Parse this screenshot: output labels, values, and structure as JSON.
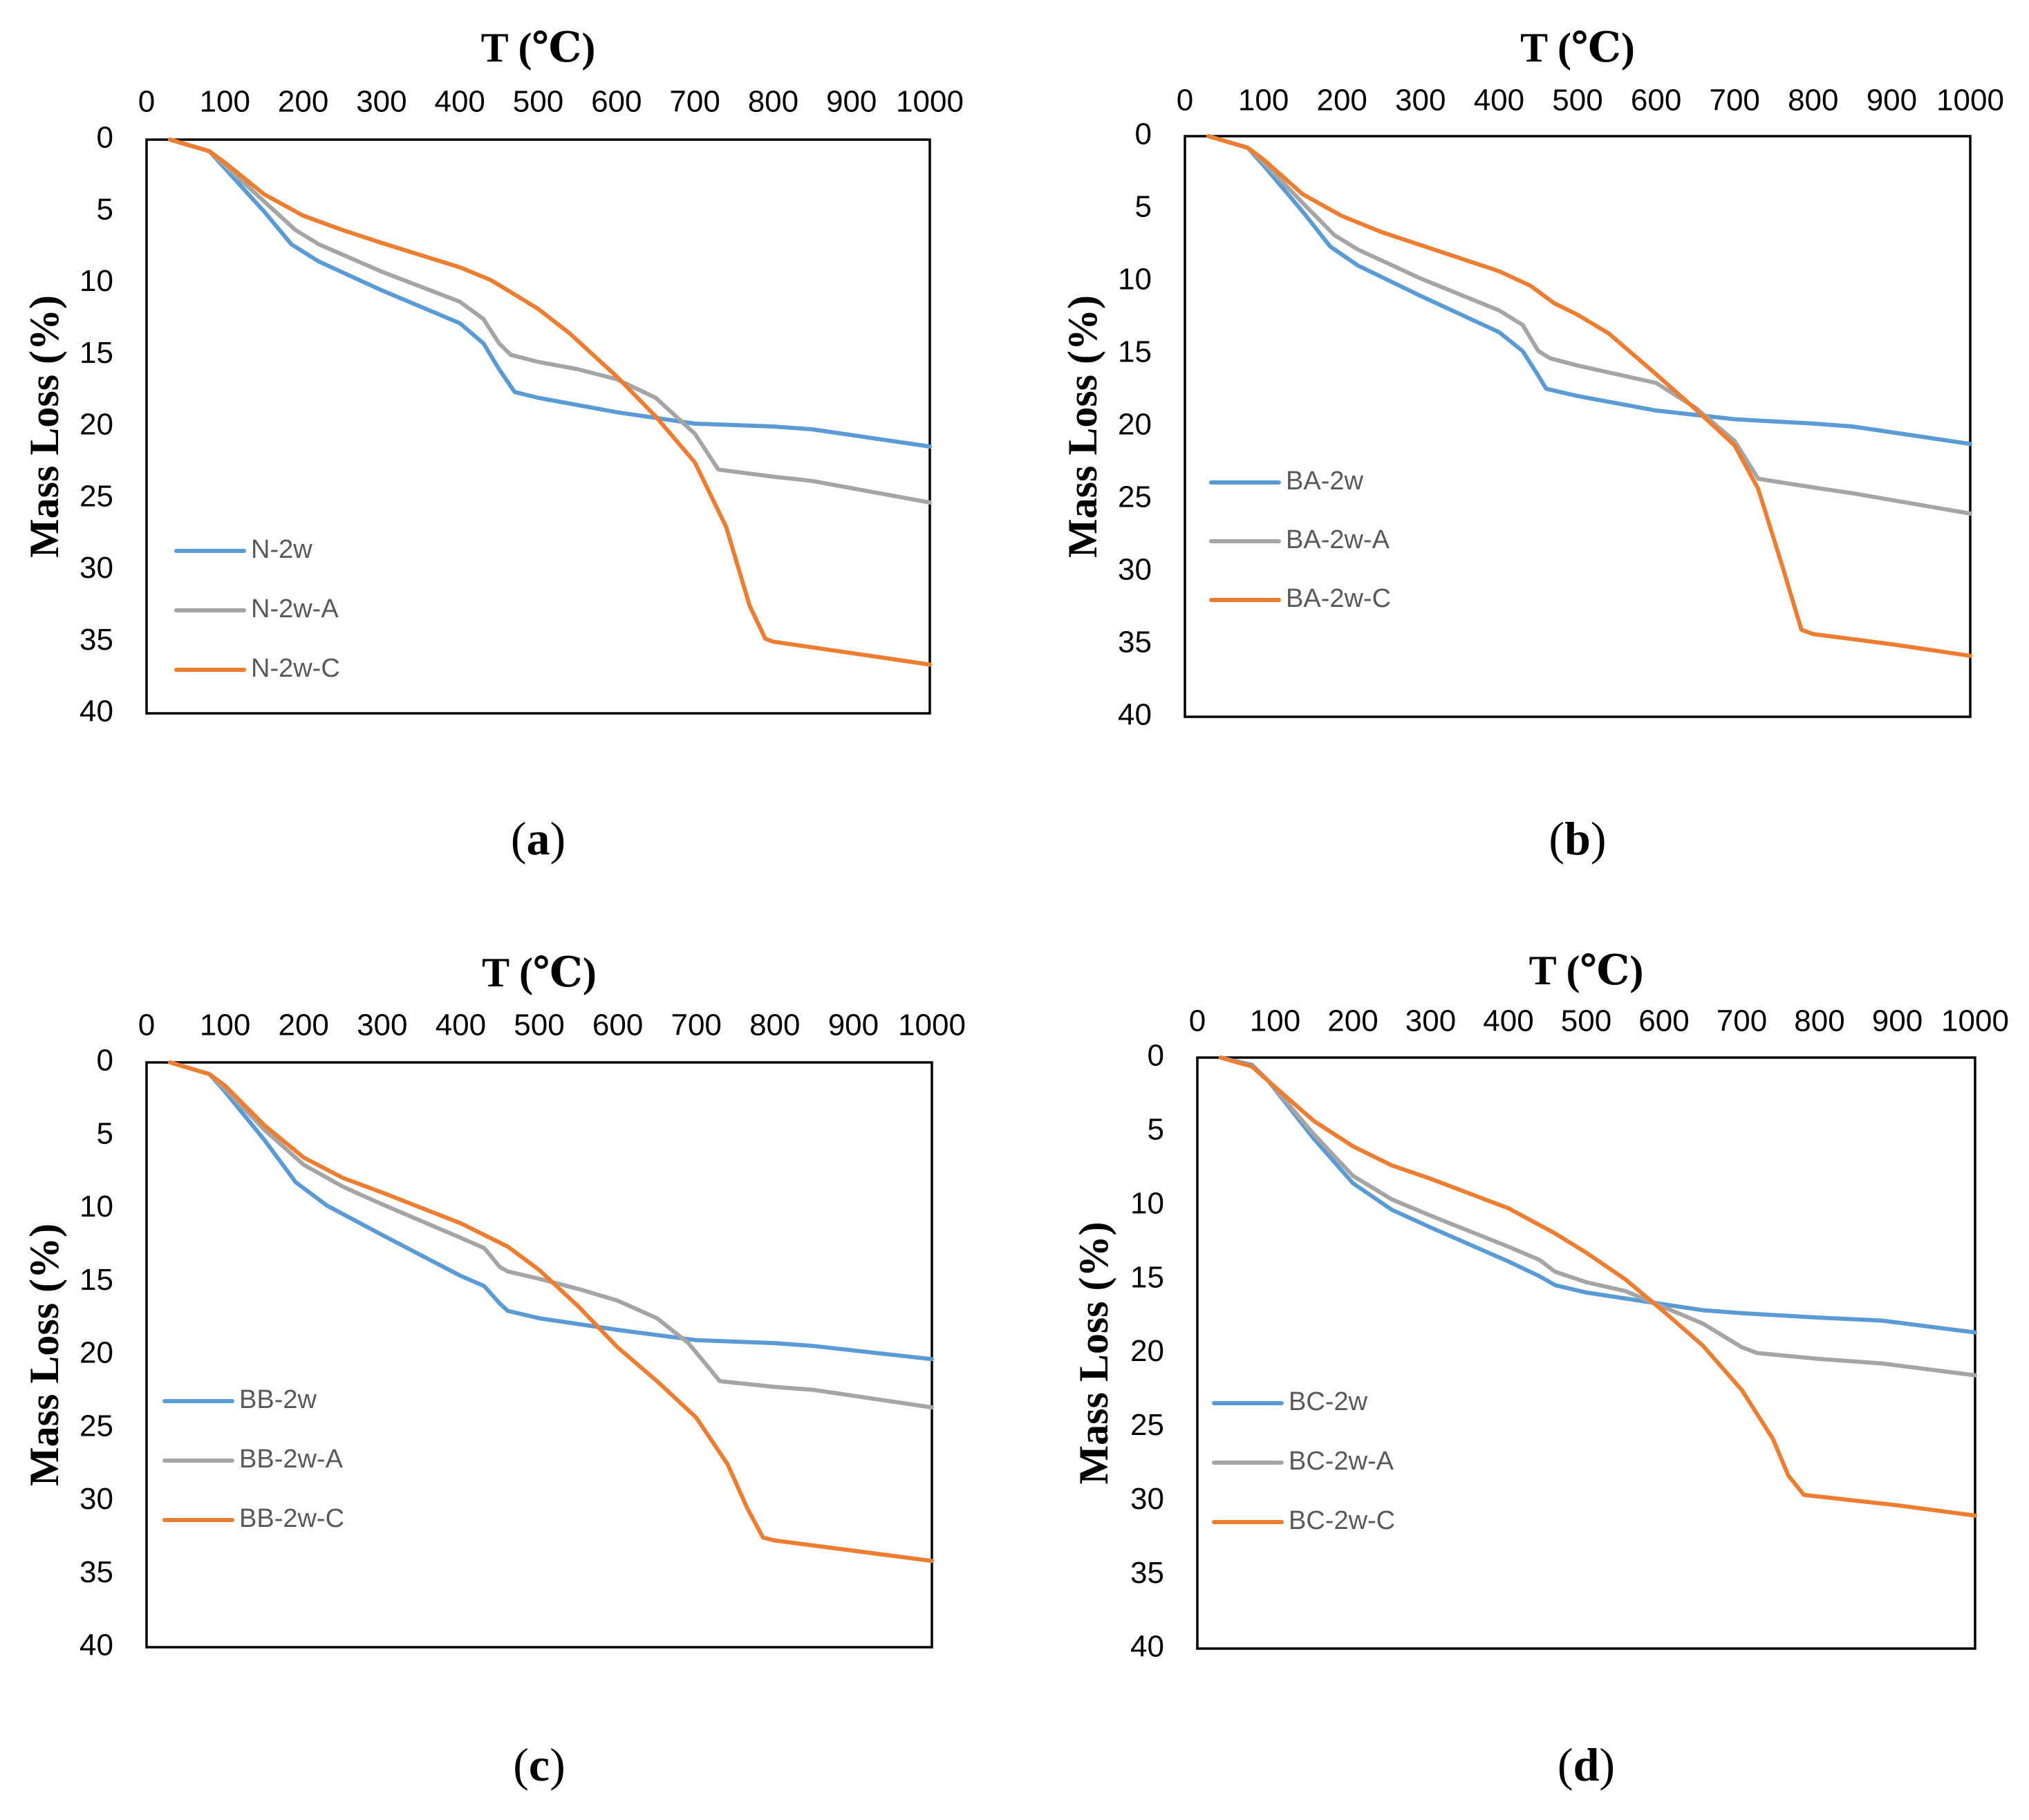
{
  "figure": {
    "panel_count": 4
  },
  "chart_data": [
    {
      "type": "line",
      "panel_label": "a",
      "xlabel": "T (℃)",
      "ylabel": "Mass Loss (%)",
      "xlim": [
        0,
        1000
      ],
      "ylim": [
        0,
        40
      ],
      "y_inverted": true,
      "x_axis_position": "top",
      "xticks": [
        0,
        100,
        200,
        300,
        400,
        500,
        600,
        700,
        800,
        900,
        1000
      ],
      "yticks": [
        0,
        5,
        10,
        15,
        20,
        25,
        30,
        35,
        40
      ],
      "legend_position": "bottom-left",
      "series": [
        {
          "name": "N-2w",
          "color": "#5B9BD5",
          "x": [
            30,
            80,
            100,
            150,
            185,
            220,
            300,
            400,
            430,
            450,
            470,
            500,
            600,
            700,
            800,
            850,
            1000
          ],
          "y": [
            0,
            0.8,
            2,
            5,
            7.3,
            8.5,
            10.5,
            12.8,
            14.2,
            16,
            17.6,
            18,
            19,
            19.8,
            20,
            20.2,
            21.4
          ]
        },
        {
          "name": "N-2w-A",
          "color": "#A5A5A5",
          "x": [
            30,
            80,
            100,
            150,
            190,
            220,
            300,
            400,
            430,
            450,
            465,
            500,
            550,
            600,
            650,
            700,
            730,
            800,
            850,
            1000
          ],
          "y": [
            0,
            0.8,
            1.8,
            4.3,
            6.3,
            7.3,
            9.2,
            11.3,
            12.5,
            14.2,
            15,
            15.5,
            16,
            16.7,
            18,
            20.5,
            23,
            23.5,
            23.8,
            25.3
          ]
        },
        {
          "name": "N-2w-C",
          "color": "#ED7D31",
          "x": [
            30,
            80,
            100,
            150,
            200,
            250,
            300,
            400,
            440,
            470,
            500,
            540,
            600,
            650,
            700,
            740,
            770,
            790,
            800,
            900,
            1000
          ],
          "y": [
            0,
            0.8,
            1.6,
            3.8,
            5.3,
            6.3,
            7.2,
            8.9,
            9.8,
            10.8,
            11.8,
            13.5,
            16.5,
            19.3,
            22.5,
            27,
            32.5,
            34.8,
            35,
            35.8,
            36.6
          ]
        }
      ]
    },
    {
      "type": "line",
      "panel_label": "b",
      "xlabel": "T (℃)",
      "ylabel": "Mass Loss (%)",
      "xlim": [
        0,
        1000
      ],
      "ylim": [
        0,
        40
      ],
      "y_inverted": true,
      "x_axis_position": "top",
      "xticks": [
        0,
        100,
        200,
        300,
        400,
        500,
        600,
        700,
        800,
        900,
        1000
      ],
      "yticks": [
        0,
        5,
        10,
        15,
        20,
        25,
        30,
        35,
        40
      ],
      "legend_position": "bottom-left",
      "series": [
        {
          "name": "BA-2w",
          "color": "#5B9BD5",
          "x": [
            30,
            80,
            100,
            150,
            185,
            220,
            300,
            400,
            430,
            450,
            460,
            500,
            600,
            700,
            800,
            850,
            1000
          ],
          "y": [
            0,
            0.8,
            2,
            5.2,
            7.6,
            8.9,
            11,
            13.5,
            14.8,
            16.5,
            17.4,
            17.9,
            18.9,
            19.5,
            19.8,
            20,
            21.2
          ]
        },
        {
          "name": "BA-2w-A",
          "color": "#A5A5A5",
          "x": [
            30,
            80,
            100,
            150,
            190,
            220,
            300,
            400,
            430,
            450,
            465,
            500,
            600,
            650,
            700,
            730,
            800,
            850,
            1000
          ],
          "y": [
            0,
            0.8,
            1.8,
            4.6,
            6.8,
            7.8,
            9.8,
            12,
            13,
            14.8,
            15.3,
            15.8,
            17,
            18.7,
            21,
            23.6,
            24.2,
            24.6,
            26
          ]
        },
        {
          "name": "BA-2w-C",
          "color": "#ED7D31",
          "x": [
            30,
            80,
            100,
            150,
            200,
            250,
            300,
            400,
            440,
            470,
            500,
            540,
            600,
            650,
            700,
            730,
            760,
            785,
            800,
            900,
            1000
          ],
          "y": [
            0,
            0.8,
            1.6,
            4,
            5.5,
            6.6,
            7.5,
            9.3,
            10.3,
            11.5,
            12.3,
            13.6,
            16.4,
            18.8,
            21.3,
            24.3,
            29.5,
            34,
            34.3,
            35,
            35.8
          ]
        }
      ]
    },
    {
      "type": "line",
      "panel_label": "c",
      "xlabel": "T (℃)",
      "ylabel": "Mass Loss (%)",
      "xlim": [
        0,
        1000
      ],
      "ylim": [
        0,
        40
      ],
      "y_inverted": true,
      "x_axis_position": "top",
      "xticks": [
        0,
        100,
        200,
        300,
        400,
        500,
        600,
        700,
        800,
        900,
        1000
      ],
      "yticks": [
        0,
        5,
        10,
        15,
        20,
        25,
        30,
        35,
        40
      ],
      "legend_position": "bottom-left",
      "series": [
        {
          "name": "BB-2w",
          "color": "#5B9BD5",
          "x": [
            30,
            80,
            100,
            150,
            190,
            230,
            300,
            400,
            430,
            450,
            460,
            500,
            600,
            700,
            800,
            850,
            1000
          ],
          "y": [
            0,
            0.8,
            2,
            5.3,
            8.2,
            9.8,
            11.8,
            14.6,
            15.3,
            16.5,
            17,
            17.5,
            18.3,
            19,
            19.2,
            19.4,
            20.3
          ]
        },
        {
          "name": "BB-2w-A",
          "color": "#A5A5A5",
          "x": [
            30,
            80,
            100,
            150,
            200,
            250,
            300,
            400,
            430,
            450,
            460,
            500,
            550,
            600,
            650,
            690,
            730,
            800,
            850,
            1000
          ],
          "y": [
            0,
            0.8,
            1.8,
            4.6,
            7,
            8.5,
            9.7,
            12,
            12.7,
            14,
            14.3,
            14.8,
            15.5,
            16.3,
            17.5,
            19.2,
            21.8,
            22.2,
            22.4,
            23.6
          ]
        },
        {
          "name": "BB-2w-C",
          "color": "#ED7D31",
          "x": [
            30,
            80,
            100,
            150,
            200,
            250,
            300,
            400,
            460,
            500,
            550,
            600,
            650,
            700,
            740,
            765,
            785,
            800,
            900,
            1000
          ],
          "y": [
            0,
            0.8,
            1.6,
            4.3,
            6.5,
            7.9,
            8.9,
            11,
            12.6,
            14.2,
            16.7,
            19.5,
            21.8,
            24.3,
            27.5,
            30.5,
            32.5,
            32.7,
            33.4,
            34.1
          ]
        }
      ]
    },
    {
      "type": "line",
      "panel_label": "d",
      "xlabel": "T (℃)",
      "ylabel": "Mass Loss (%)",
      "xlim": [
        0,
        1000
      ],
      "ylim": [
        0,
        40
      ],
      "y_inverted": true,
      "x_axis_position": "top",
      "xticks": [
        0,
        100,
        200,
        300,
        400,
        500,
        600,
        700,
        800,
        900,
        1000
      ],
      "yticks": [
        0,
        5,
        10,
        15,
        20,
        25,
        30,
        35,
        40
      ],
      "legend_position": "bottom-left",
      "series": [
        {
          "name": "BC-2w",
          "color": "#5B9BD5",
          "x": [
            30,
            70,
            90,
            150,
            200,
            250,
            300,
            400,
            440,
            460,
            500,
            600,
            650,
            700,
            800,
            880,
            1000
          ],
          "y": [
            0,
            0.5,
            1.5,
            5.5,
            8.5,
            10.3,
            11.5,
            13.8,
            14.8,
            15.4,
            15.9,
            16.7,
            17.1,
            17.3,
            17.6,
            17.8,
            18.6
          ]
        },
        {
          "name": "BC-2w-A",
          "color": "#A5A5A5",
          "x": [
            30,
            70,
            90,
            150,
            200,
            250,
            300,
            400,
            440,
            460,
            500,
            550,
            600,
            650,
            700,
            720,
            800,
            880,
            1000
          ],
          "y": [
            0,
            0.6,
            1.5,
            5.2,
            8,
            9.6,
            10.7,
            12.8,
            13.7,
            14.5,
            15.2,
            15.8,
            16.9,
            18,
            19.6,
            20,
            20.4,
            20.7,
            21.5
          ]
        },
        {
          "name": "BC-2w-C",
          "color": "#ED7D31",
          "x": [
            30,
            70,
            100,
            150,
            200,
            250,
            300,
            400,
            460,
            500,
            550,
            600,
            650,
            700,
            740,
            760,
            780,
            900,
            1000
          ],
          "y": [
            0,
            0.6,
            2,
            4.3,
            6,
            7.3,
            8.2,
            10.2,
            11.9,
            13.2,
            15,
            17.2,
            19.5,
            22.5,
            25.8,
            28.3,
            29.6,
            30.3,
            31
          ]
        }
      ]
    }
  ]
}
